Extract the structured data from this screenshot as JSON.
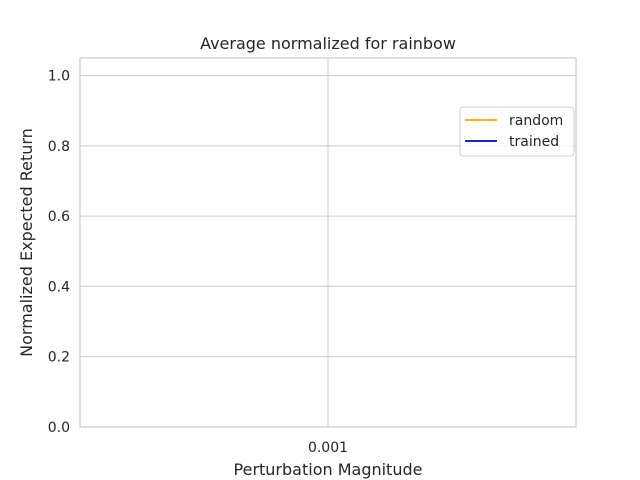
{
  "chart_data": {
    "type": "line",
    "title": "Average normalized for rainbow",
    "xlabel": "Perturbation Magnitude",
    "ylabel": "Normalized Expected Return",
    "x_tick_labels": [
      "0.001"
    ],
    "y_tick_labels": [
      "0.0",
      "0.2",
      "0.4",
      "0.6",
      "0.8",
      "1.0"
    ],
    "y_ticks": [
      0.0,
      0.2,
      0.4,
      0.6,
      0.8,
      1.0
    ],
    "ylim": [
      0.0,
      1.05
    ],
    "grid": true,
    "legend_position": "upper-right",
    "series": [
      {
        "name": "random",
        "color": "#ffa500",
        "x": [],
        "values": []
      },
      {
        "name": "trained",
        "color": "#0000cd",
        "x": [],
        "values": []
      }
    ]
  },
  "style": {
    "grid_color": "#cccccc",
    "frame_color": "#cccccc",
    "text_color": "#262626"
  }
}
